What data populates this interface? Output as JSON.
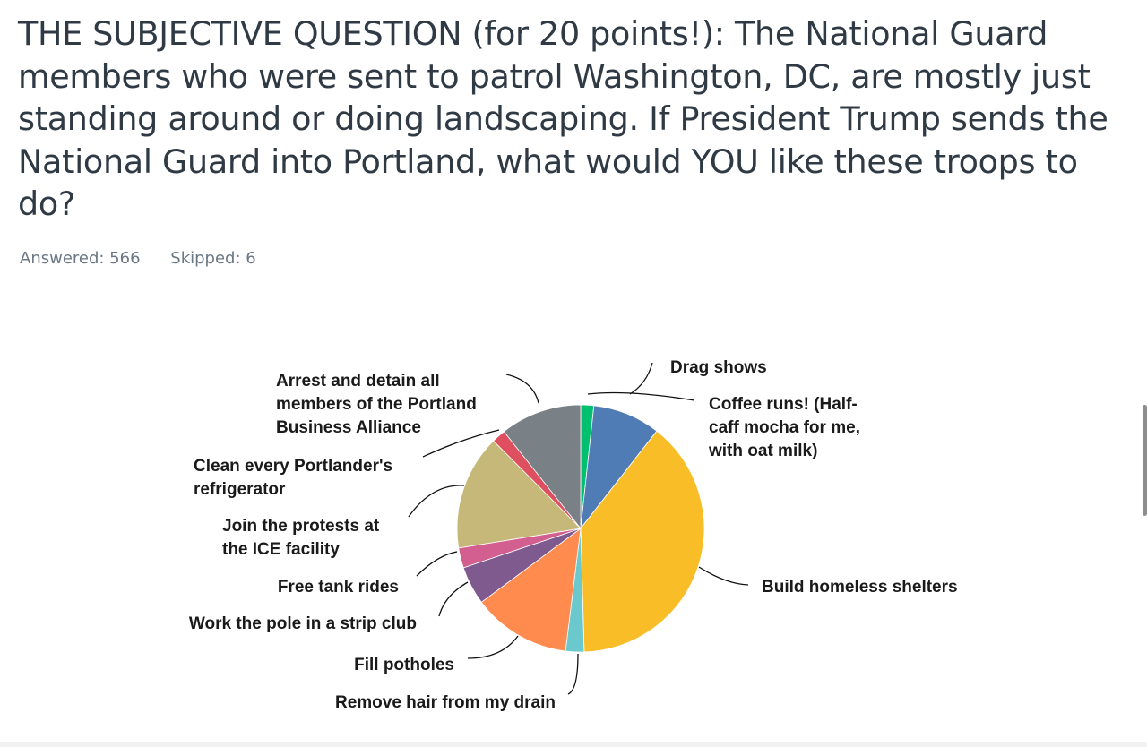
{
  "question": {
    "title_lines": [
      "THE SUBJECTIVE QUESTION (for 20 points!): The National Guard",
      "members who were sent to patrol Washington, DC, are mostly just",
      "standing around or doing landscaping. If President Trump sends the",
      "National Guard into Portland, what would YOU like these troops to",
      "do?"
    ]
  },
  "stats": {
    "answered": "Answered: 566",
    "skipped": "Skipped: 6"
  },
  "chart_data": {
    "type": "pie",
    "start": "top",
    "direction": "clockwise",
    "slices": [
      {
        "label_lines": [
          "Drag shows"
        ],
        "value": 1.7,
        "color": "#00bf6f"
      },
      {
        "label_lines": [
          "Coffee runs! (Half-",
          "caff mocha for me,",
          "with oat milk)"
        ],
        "value": 8.8,
        "color": "#507cb6"
      },
      {
        "label_lines": [
          "Build homeless shelters"
        ],
        "value": 38.8,
        "color": "#f9be27"
      },
      {
        "label_lines": [
          "Remove hair from my drain"
        ],
        "value": 2.4,
        "color": "#6bc8cd"
      },
      {
        "label_lines": [
          "Fill potholes"
        ],
        "value": 12.8,
        "color": "#ff8b4f"
      },
      {
        "label_lines": [
          "Work the pole in a strip club"
        ],
        "value": 5.0,
        "color": "#7f5a8e"
      },
      {
        "label_lines": [
          "Free tank rides"
        ],
        "value": 2.6,
        "color": "#d25f90"
      },
      {
        "label_lines": [
          "Join the protests at",
          "the ICE facility"
        ],
        "value": 15.0,
        "color": "#c6b879"
      },
      {
        "label_lines": [
          "Clean every Portlander's",
          "refrigerator"
        ],
        "value": 1.8,
        "color": "#de5060"
      },
      {
        "label_lines": [
          "Arrest and detain all",
          "members of the Portland",
          "Business Alliance"
        ],
        "value": 10.6,
        "color": "#798186"
      }
    ]
  }
}
